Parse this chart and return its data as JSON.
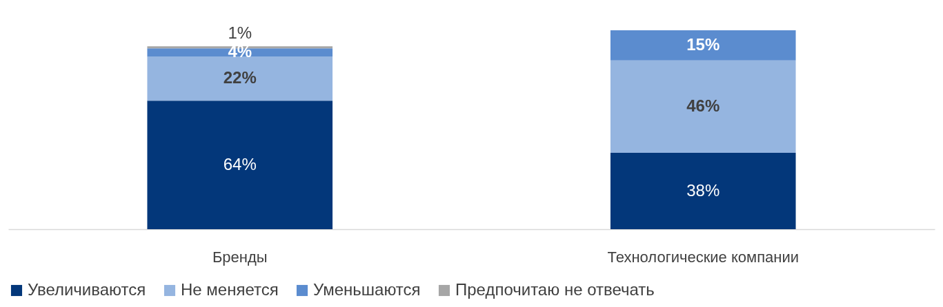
{
  "chart_data": {
    "type": "bar",
    "stacked": true,
    "categories": [
      "Бренды",
      "Технологические компании"
    ],
    "series": [
      {
        "name": "Увеличиваются",
        "color": "#03377a",
        "values": [
          64,
          38
        ],
        "value_labels": [
          "64%",
          "38%"
        ]
      },
      {
        "name": "Не меняется",
        "color": "#95b5e0",
        "values": [
          22,
          46
        ],
        "value_labels": [
          "22%",
          "46%"
        ]
      },
      {
        "name": "Уменьшаются",
        "color": "#5b8ccf",
        "values": [
          4,
          15
        ],
        "value_labels": [
          "4%",
          "15%"
        ]
      },
      {
        "name": "Предпочитаю не отвечать",
        "color": "#a6a6a6",
        "values": [
          1,
          null
        ],
        "value_labels": [
          "1%",
          null
        ]
      }
    ],
    "legend": "bottom",
    "grid": false
  }
}
